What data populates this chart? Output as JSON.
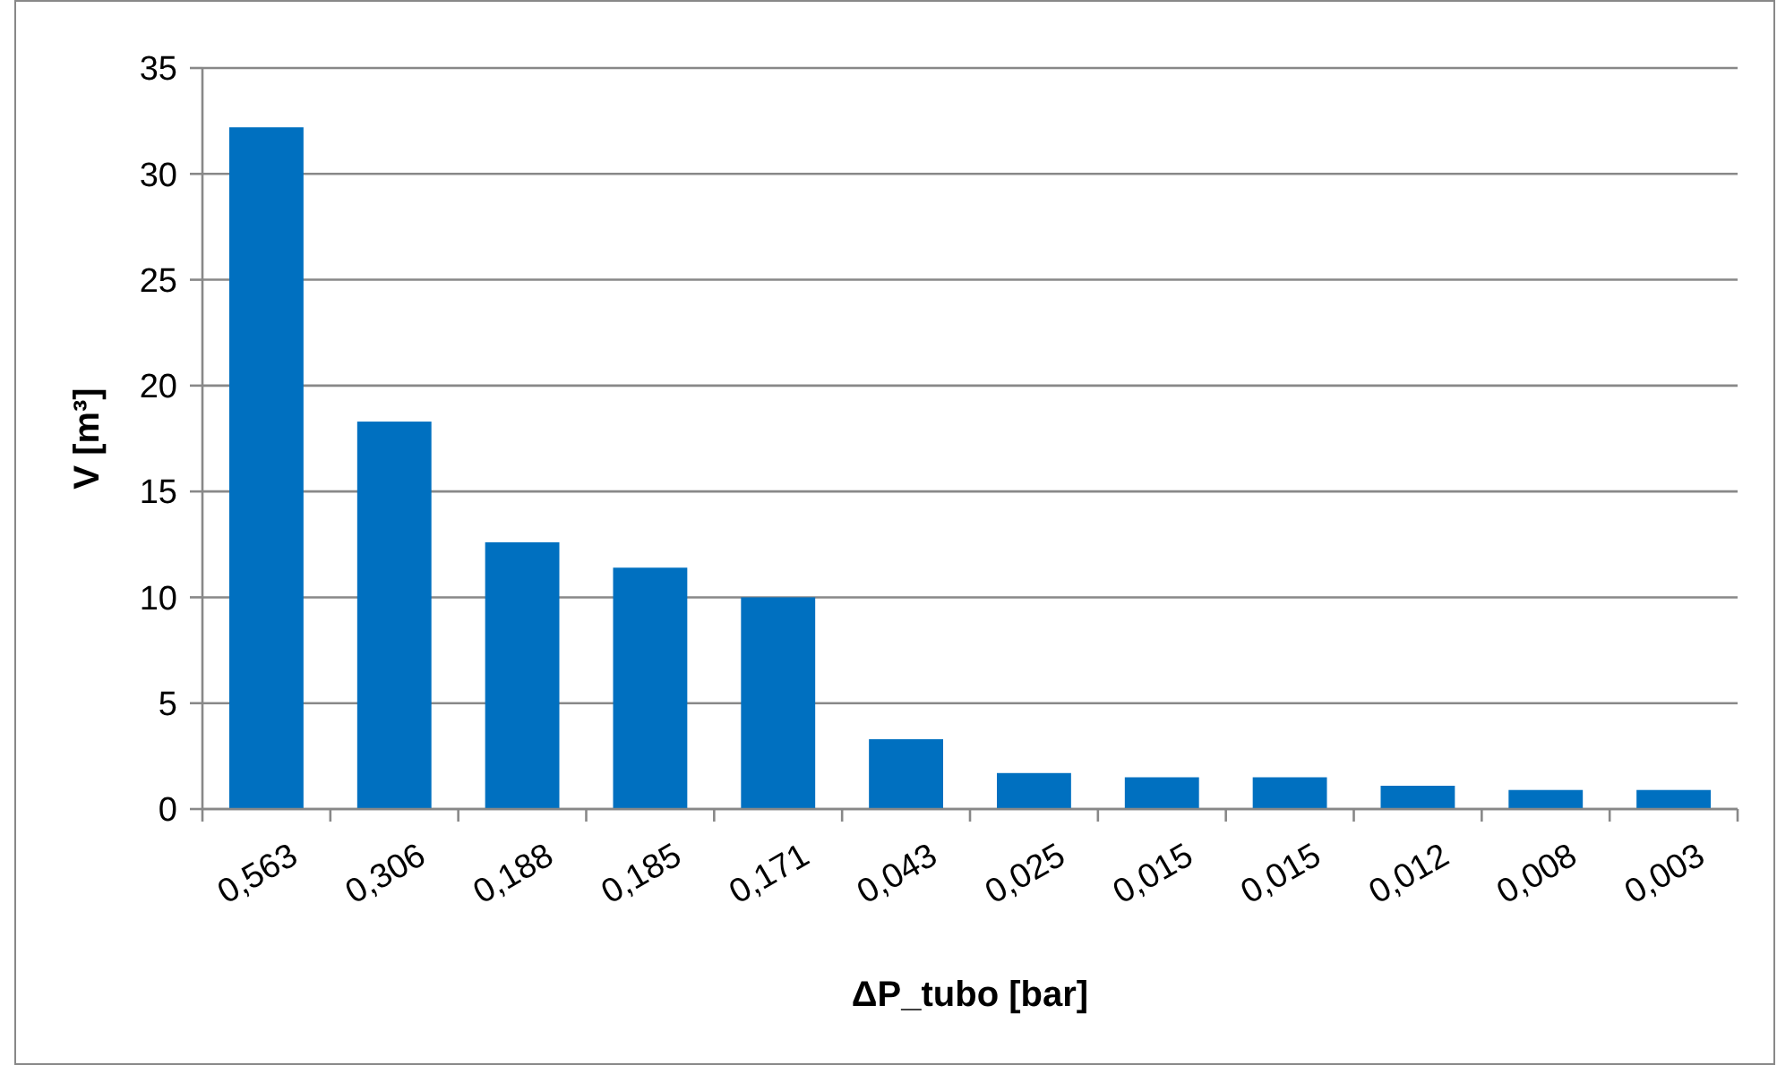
{
  "chart_data": {
    "type": "bar",
    "xlabel": "ΔP_tubo [bar]",
    "ylabel": "V [m³]",
    "categories": [
      "0,563",
      "0,306",
      "0,188",
      "0,185",
      "0,171",
      "0,043",
      "0,025",
      "0,015",
      "0,015",
      "0,012",
      "0,008",
      "0,003"
    ],
    "values": [
      32.2,
      18.3,
      12.6,
      11.4,
      10.0,
      3.3,
      1.7,
      1.5,
      1.5,
      1.1,
      0.9,
      0.9
    ],
    "color": "#0070c0",
    "ylim": [
      0,
      35
    ],
    "yticks": [
      0,
      5,
      10,
      15,
      20,
      25,
      30,
      35
    ],
    "grid": "y"
  }
}
